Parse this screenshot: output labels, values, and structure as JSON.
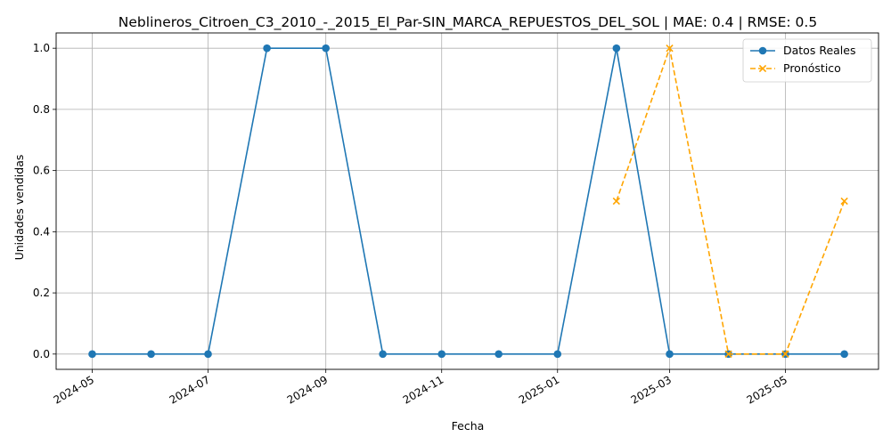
{
  "chart_data": {
    "type": "line",
    "title": "Neblineros_Citroen_C3_2010_-_2015_El_Par-SIN_MARCA_REPUESTOS_DEL_SOL | MAE: 0.4 | RMSE: 0.5",
    "xlabel": "Fecha",
    "ylabel": "Unidades vendidas",
    "ylim": [
      -0.05,
      1.05
    ],
    "xlim": [
      "2024-04-12",
      "2025-06-19"
    ],
    "grid": true,
    "legend_position": "top-right",
    "x_ticks": [
      "2024-05",
      "2024-07",
      "2024-09",
      "2024-11",
      "2025-01",
      "2025-03",
      "2025-05"
    ],
    "y_ticks": [
      "0.0",
      "0.2",
      "0.4",
      "0.6",
      "0.8",
      "1.0"
    ],
    "series": [
      {
        "name": "Datos Reales",
        "color": "#1f77b4",
        "line_style": "solid",
        "marker": "circle",
        "x": [
          "2024-05-01",
          "2024-06-01",
          "2024-07-01",
          "2024-08-01",
          "2024-09-01",
          "2024-10-01",
          "2024-11-01",
          "2024-12-01",
          "2025-01-01",
          "2025-02-01",
          "2025-03-01",
          "2025-04-01",
          "2025-05-01",
          "2025-06-01"
        ],
        "values": [
          0,
          0,
          0,
          1,
          1,
          0,
          0,
          0,
          0,
          1,
          0,
          0,
          0,
          0
        ]
      },
      {
        "name": "Pronóstico",
        "color": "#ffa500",
        "line_style": "dashed",
        "marker": "x",
        "x": [
          "2025-02-01",
          "2025-03-01",
          "2025-04-01",
          "2025-05-01",
          "2025-06-01"
        ],
        "values": [
          0.5,
          1,
          0,
          0,
          0.5
        ]
      }
    ]
  }
}
